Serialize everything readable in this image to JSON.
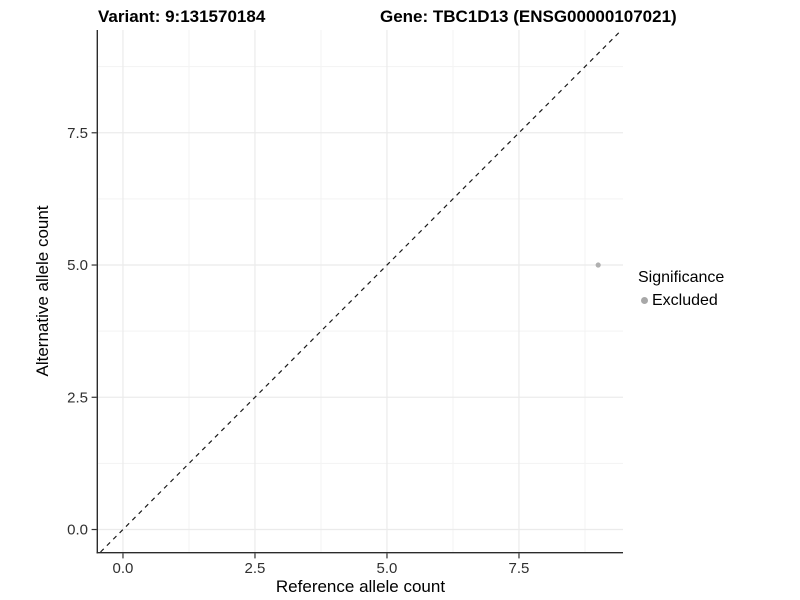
{
  "titles": {
    "variant": "Variant: 9:131570184",
    "gene": "Gene: TBC1D13 (ENSG00000107021)"
  },
  "chart_data": {
    "type": "scatter",
    "title": "Variant: 9:131570184 | Gene: TBC1D13 (ENSG00000107021)",
    "xlabel": "Reference allele count",
    "ylabel": "Alternative allele count",
    "xlim": [
      -0.473,
      9.47
    ],
    "ylim": [
      -0.425,
      9.443
    ],
    "xticks": [
      0.0,
      2.5,
      5.0,
      7.5
    ],
    "yticks": [
      0.0,
      2.5,
      5.0,
      7.5
    ],
    "xtick_labels": [
      "0.0",
      "2.5",
      "5.0",
      "7.5"
    ],
    "ytick_labels": [
      "0.0",
      "2.5",
      "5.0",
      "7.5"
    ],
    "minor_xticks": [
      1.25,
      3.75,
      6.25,
      8.75
    ],
    "minor_yticks": [
      1.25,
      3.75,
      6.25,
      8.75
    ],
    "grid": true,
    "reference_line": {
      "type": "abline",
      "slope": 1,
      "intercept": 0,
      "style": "dashed",
      "color": "#1a1a1a"
    },
    "series": [
      {
        "name": "Excluded",
        "points": [
          {
            "x": 9,
            "y": 5
          }
        ],
        "color": "#b0b0b0",
        "marker_radius": 2.6
      }
    ],
    "legend": {
      "title": "Significance",
      "position": "right",
      "entries": [
        {
          "label": "Excluded",
          "color": "#a8a8a8"
        }
      ]
    },
    "colors": {
      "panel_background": "#ffffff",
      "major_grid": "#ebebeb",
      "minor_grid": "#f3f3f3",
      "axis_line": "#2b2b2b",
      "tick_mark": "#333333",
      "tick_label": "#303030",
      "axis_title": "#000000"
    }
  }
}
